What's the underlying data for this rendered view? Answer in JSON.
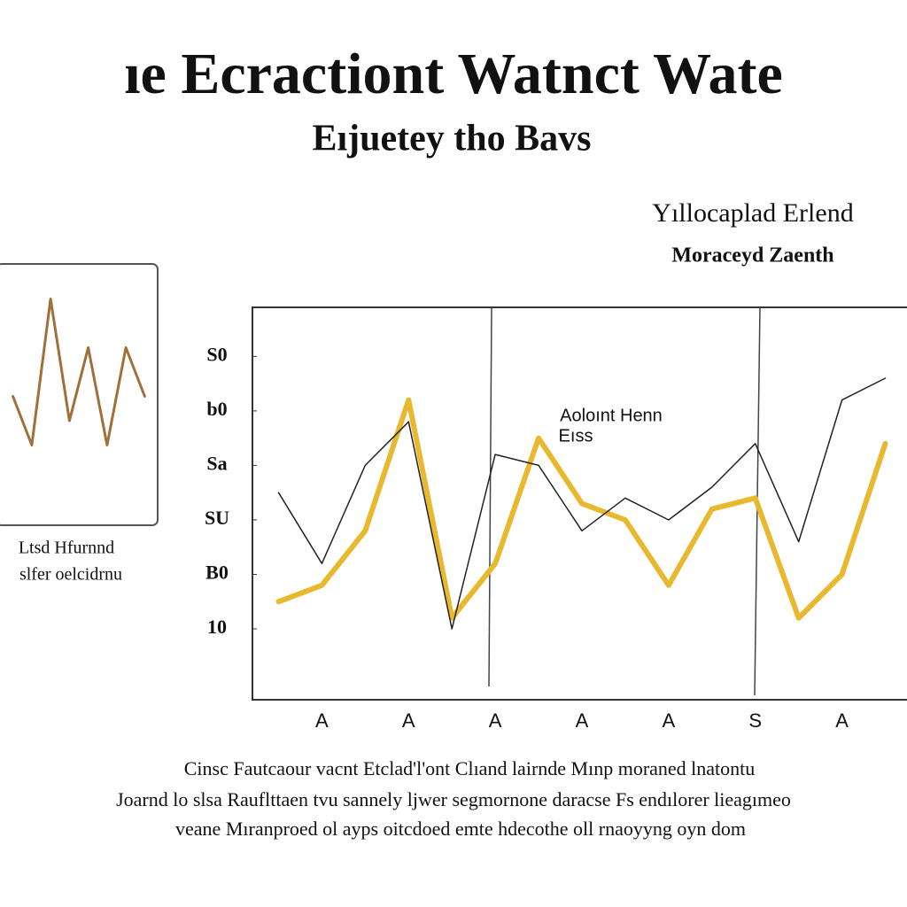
{
  "chart_data": [
    {
      "type": "line",
      "title": "ıe Ecractiont Watnct Wate",
      "subtitle": "Eıjuetey tho Bavs",
      "annotations": [
        "Yıllocaplad Erlend",
        "Moraceyd Zaenth",
        "Aoloınt Henn",
        "Eıss"
      ],
      "caption": [
        "Cinsc Fautcaour vacnt Etclad'l'ont Clıand lairnde Mınp moraned lnatontu",
        "Joarnd lo slsa Rauflttaen tvu sannely ljwer segmornone daracse Fs endılorer lieagımeo",
        "veane Mıranproed ol ayps oitcdoed emte hdecothe oll rnaoyyng oyn dom"
      ],
      "categories": [
        null,
        "A",
        null,
        "A",
        null,
        "A",
        null,
        "A",
        null,
        "A",
        null,
        "S",
        null,
        "A",
        null
      ],
      "series": [
        {
          "color": "#e8b92f",
          "values": [
            15,
            18,
            28,
            52,
            12,
            22,
            45,
            33,
            30,
            18,
            32,
            34,
            12,
            20,
            44
          ]
        },
        {
          "color": "#222222",
          "values": [
            35,
            22,
            40,
            48,
            10,
            42,
            40,
            28,
            34,
            30,
            36,
            44,
            26,
            52,
            56
          ]
        }
      ],
      "ylim": [
        -3,
        69
      ],
      "yticks": [
        {
          "value": 60,
          "label": "S0"
        },
        {
          "value": 50,
          "label": "b0"
        },
        {
          "value": 40,
          "label": "Sa"
        },
        {
          "value": 30,
          "label": "SU"
        },
        {
          "value": 20,
          "label": "B0"
        },
        10
      ]
    },
    {
      "type": "line",
      "caption": [
        "Ltsd Hfurnnd",
        "slfer oelcidrnu"
      ],
      "categories": [
        null,
        null,
        null,
        null,
        null,
        null,
        null,
        null
      ],
      "series": [
        {
          "color": "#a0703a",
          "values": [
            5,
            3,
            9,
            4,
            7,
            3,
            7,
            5
          ]
        }
      ],
      "ylim": [
        0,
        10
      ]
    }
  ]
}
